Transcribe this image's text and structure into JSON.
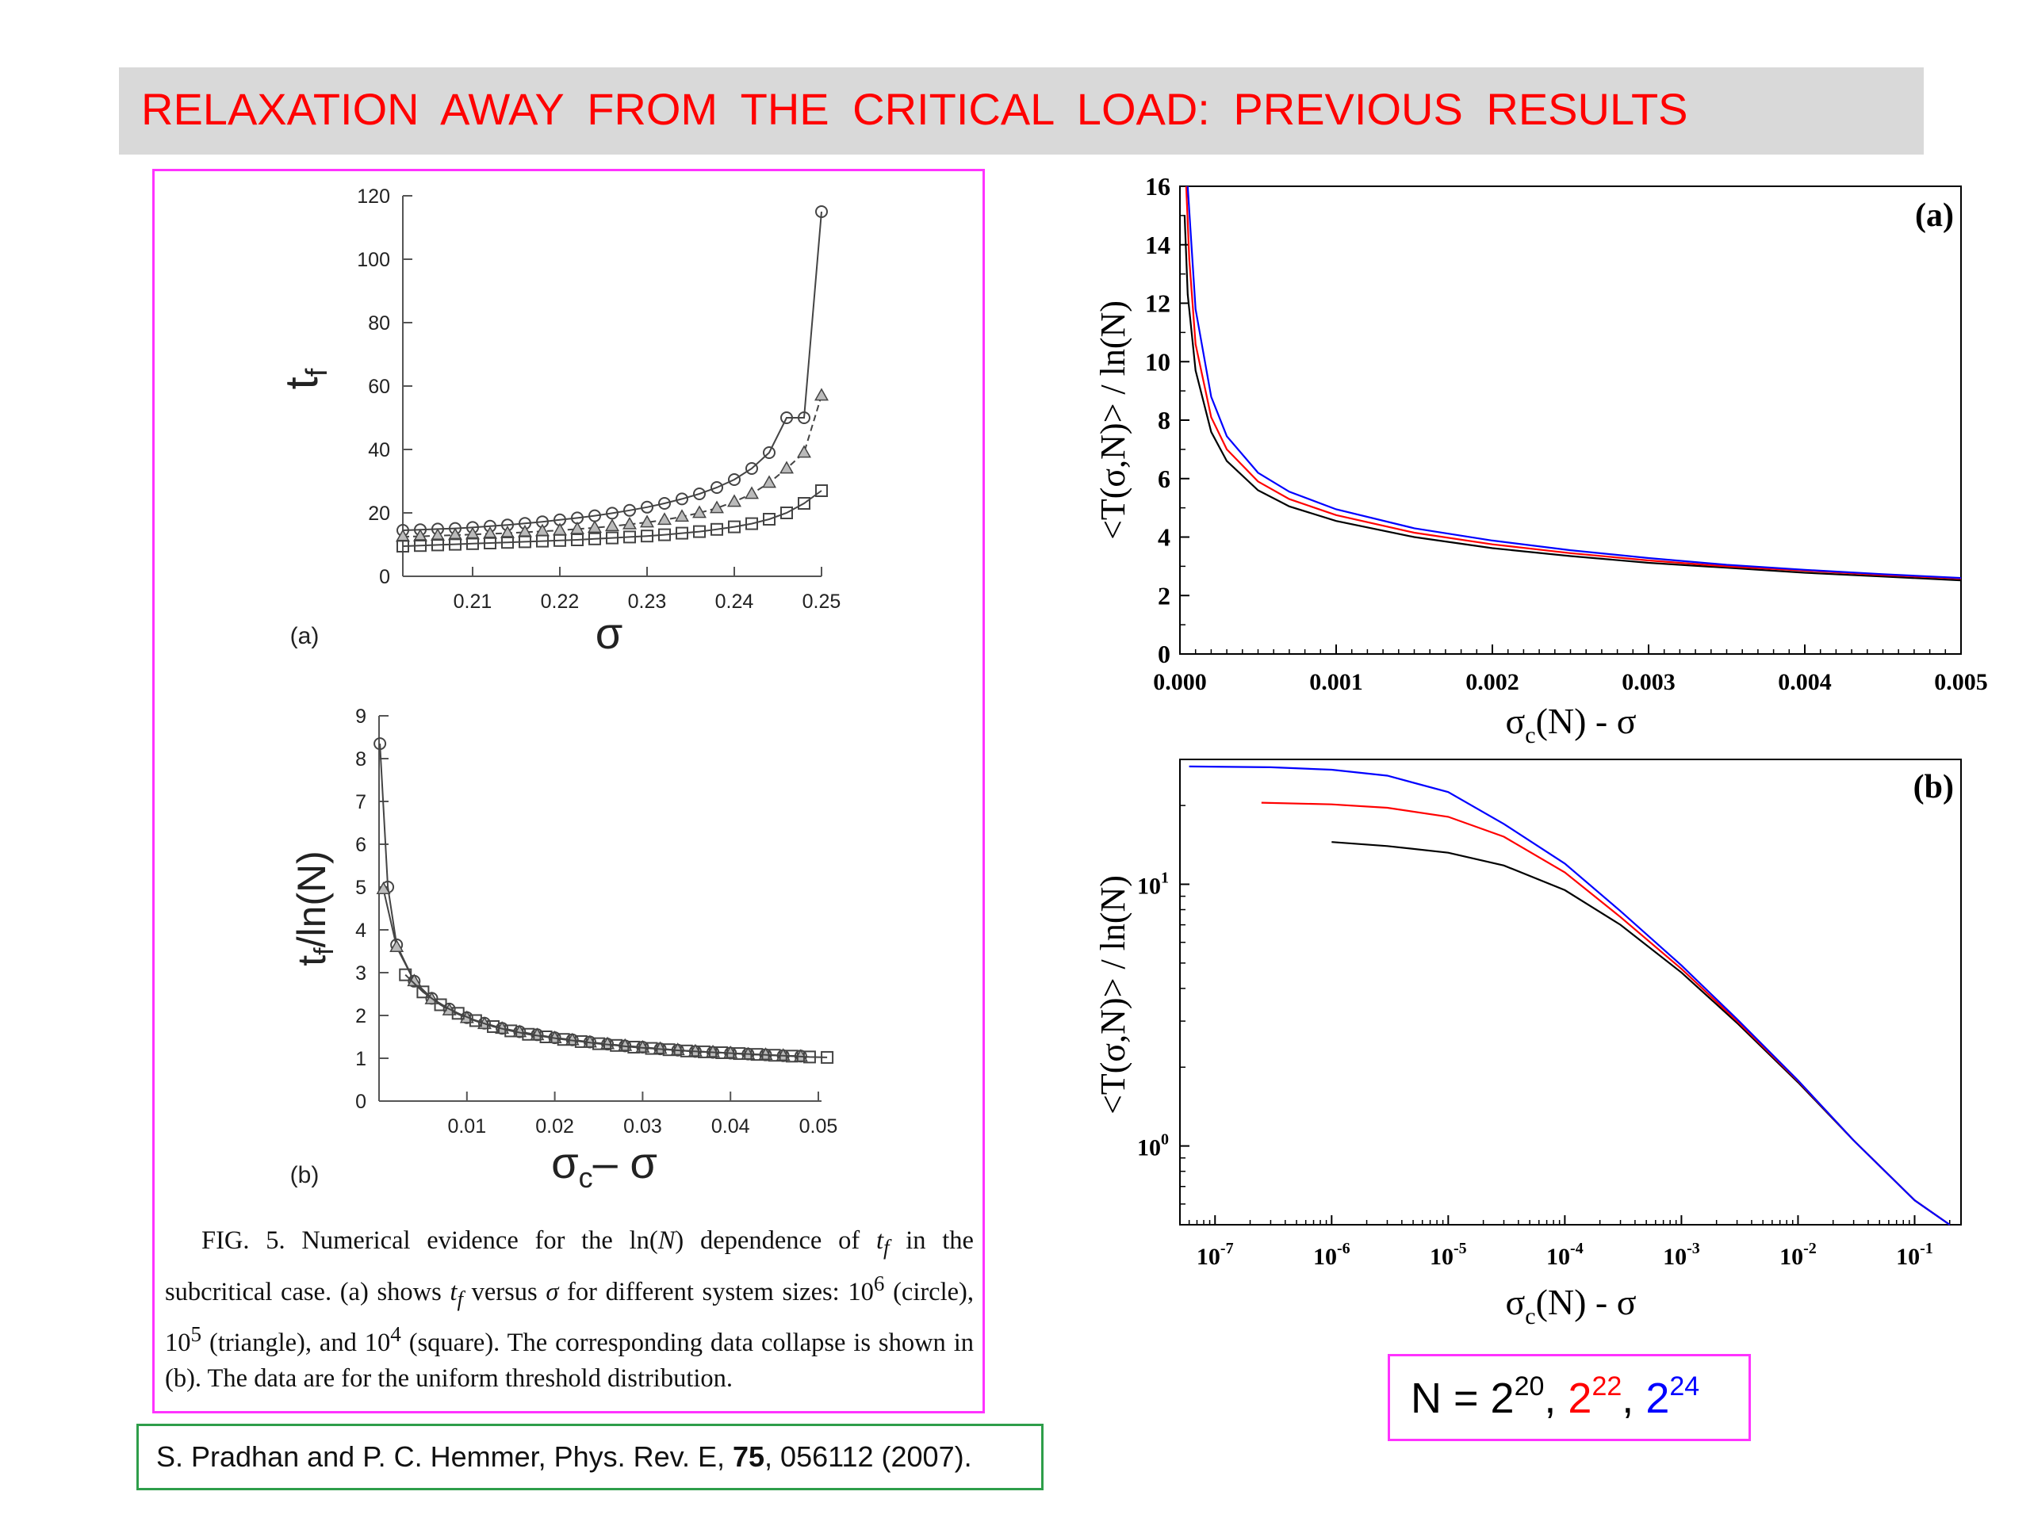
{
  "slide": {
    "title": "RELAXATION  AWAY  FROM  THE  CRITICAL  LOAD:  PREVIOUS  RESULTS",
    "caption": {
      "p1": "FIG. 5. Numerical evidence for the ln(",
      "N": "N",
      "p2": ") dependence of ",
      "t": "t",
      "f": "f",
      "p3": " in the subcritical case. (a) shows ",
      "p4": " versus ",
      "sigma": "σ",
      "p5": " for different system sizes: 10",
      "e6": "6",
      "p6": " (circle), 10",
      "e5": "5",
      "p7": " (triangle), and 10",
      "e4": "4",
      "p8": " (square). The corresponding data collapse is shown in (b). The data are for the uniform threshold distribution."
    },
    "reference": {
      "before": "S. Pradhan and P. C. Hemmer, Phys. Rev. E, ",
      "volume": "75",
      "after": ", 056112 (2007)."
    },
    "legend_box": {
      "prefix": "N = 2",
      "e1": "20",
      "sep1": ", ",
      "b2": "2",
      "e2": "22",
      "sep2": ", ",
      "b3": "2",
      "e3": "24",
      "colors": [
        "#000000",
        "#ff0000",
        "#0000ff"
      ]
    }
  },
  "chart_data": [
    {
      "panel_label": "(a)",
      "type": "line",
      "xlabel": "σ",
      "ylabel": "t",
      "ylabel_sub": "f",
      "xlim": [
        0.202,
        0.25
      ],
      "ylim": [
        0,
        120
      ],
      "xticks": [
        "0.21",
        "0.22",
        "0.23",
        "0.24",
        "0.25"
      ],
      "yticks": [
        "0",
        "20",
        "40",
        "60",
        "80",
        "100",
        "120"
      ],
      "series": [
        {
          "marker": "circle",
          "x": [
            0.202,
            0.204,
            0.206,
            0.208,
            0.21,
            0.212,
            0.214,
            0.216,
            0.218,
            0.22,
            0.222,
            0.224,
            0.226,
            0.228,
            0.23,
            0.232,
            0.234,
            0.236,
            0.238,
            0.24,
            0.242,
            0.244,
            0.246,
            0.248,
            0.25
          ],
          "y": [
            14.5,
            14.7,
            14.9,
            15.1,
            15.4,
            15.8,
            16.2,
            16.7,
            17.2,
            17.8,
            18.4,
            19.1,
            19.9,
            20.8,
            21.8,
            23,
            24.4,
            26,
            28,
            30.5,
            34,
            39,
            50,
            50,
            115
          ]
        },
        {
          "marker": "triangle",
          "x": [
            0.202,
            0.204,
            0.206,
            0.208,
            0.21,
            0.212,
            0.214,
            0.216,
            0.218,
            0.22,
            0.222,
            0.224,
            0.226,
            0.228,
            0.23,
            0.232,
            0.234,
            0.236,
            0.238,
            0.24,
            0.242,
            0.244,
            0.246,
            0.248,
            0.25
          ],
          "y": [
            12.5,
            12.6,
            12.8,
            13,
            13.2,
            13.4,
            13.6,
            13.9,
            14.2,
            14.5,
            14.9,
            15.3,
            15.8,
            16.4,
            17,
            17.8,
            18.8,
            20,
            21.5,
            23.5,
            26,
            29.5,
            34,
            39,
            57
          ]
        },
        {
          "marker": "square",
          "x": [
            0.202,
            0.204,
            0.206,
            0.208,
            0.21,
            0.212,
            0.214,
            0.216,
            0.218,
            0.22,
            0.222,
            0.224,
            0.226,
            0.228,
            0.23,
            0.232,
            0.234,
            0.236,
            0.238,
            0.24,
            0.242,
            0.244,
            0.246,
            0.248,
            0.25
          ],
          "y": [
            9.5,
            9.7,
            9.9,
            10.1,
            10.3,
            10.5,
            10.7,
            10.9,
            11.1,
            11.3,
            11.5,
            11.8,
            12.1,
            12.4,
            12.7,
            13.1,
            13.6,
            14.1,
            14.8,
            15.6,
            16.6,
            18,
            20,
            23,
            27
          ]
        }
      ]
    },
    {
      "panel_label": "(b)",
      "type": "line",
      "xlabel_sigma1": "σ",
      "xlabel_sub": "c",
      "xlabel_rest": "– σ",
      "ylabel_t": "t",
      "ylabel_sub": "f",
      "ylabel_rest": "/ln(N)",
      "xlim": [
        0,
        0.05
      ],
      "ylim": [
        0,
        9
      ],
      "xticks": [
        "0.01",
        "0.02",
        "0.03",
        "0.04",
        "0.05"
      ],
      "yticks": [
        "0",
        "1",
        "2",
        "3",
        "4",
        "5",
        "6",
        "7",
        "8",
        "9"
      ],
      "series": [
        {
          "marker": "circle",
          "x": [
            0.0001,
            0.001,
            0.002,
            0.004,
            0.006,
            0.008,
            0.01,
            0.012,
            0.014,
            0.016,
            0.018,
            0.02,
            0.022,
            0.024,
            0.026,
            0.028,
            0.03,
            0.032,
            0.034,
            0.036,
            0.038,
            0.04,
            0.042,
            0.044,
            0.046,
            0.048
          ],
          "y": [
            8.35,
            5,
            3.65,
            2.8,
            2.4,
            2.15,
            1.95,
            1.82,
            1.7,
            1.62,
            1.55,
            1.48,
            1.43,
            1.38,
            1.33,
            1.29,
            1.26,
            1.22,
            1.19,
            1.16,
            1.14,
            1.12,
            1.1,
            1.08,
            1.06,
            1.05
          ]
        },
        {
          "marker": "triangle",
          "x": [
            0.0005,
            0.002,
            0.004,
            0.006,
            0.008,
            0.01,
            0.012,
            0.014,
            0.016,
            0.018,
            0.02,
            0.022,
            0.024,
            0.026,
            0.028,
            0.03,
            0.032,
            0.034,
            0.036,
            0.038,
            0.04,
            0.042,
            0.044,
            0.046,
            0.048
          ],
          "y": [
            4.95,
            3.6,
            2.8,
            2.38,
            2.12,
            1.94,
            1.8,
            1.69,
            1.61,
            1.54,
            1.47,
            1.42,
            1.37,
            1.33,
            1.29,
            1.25,
            1.22,
            1.19,
            1.16,
            1.14,
            1.12,
            1.09,
            1.08,
            1.06,
            1.04
          ]
        },
        {
          "marker": "square",
          "x": [
            0.003,
            0.005,
            0.007,
            0.009,
            0.011,
            0.013,
            0.015,
            0.017,
            0.019,
            0.021,
            0.023,
            0.025,
            0.027,
            0.029,
            0.031,
            0.033,
            0.035,
            0.037,
            0.039,
            0.041,
            0.043,
            0.045,
            0.047,
            0.049,
            0.051
          ],
          "y": [
            2.95,
            2.55,
            2.25,
            2.05,
            1.88,
            1.74,
            1.64,
            1.56,
            1.5,
            1.44,
            1.39,
            1.34,
            1.3,
            1.26,
            1.23,
            1.2,
            1.17,
            1.15,
            1.13,
            1.11,
            1.09,
            1.07,
            1.05,
            1.03,
            1.02
          ]
        }
      ]
    },
    {
      "panel_label": "(a)",
      "type": "line",
      "xlabel_sigma": "σ",
      "xlabel_sub": "c",
      "xlabel_rest": "(N) - σ",
      "ylabel": "<T(σ,N)> / ln(N)",
      "xlim": [
        0,
        0.005
      ],
      "ylim": [
        0,
        16
      ],
      "xticks": [
        "0.000",
        "0.001",
        "0.002",
        "0.003",
        "0.004",
        "0.005"
      ],
      "yticks": [
        "0",
        "2",
        "4",
        "6",
        "8",
        "10",
        "12",
        "14",
        "16"
      ],
      "series": [
        {
          "name": "N = 2^20",
          "color": "#000000",
          "x": [
            3e-05,
            5e-05,
            0.0001,
            0.0002,
            0.0003,
            0.0005,
            0.0007,
            0.001,
            0.0015,
            0.002,
            0.0025,
            0.003,
            0.0035,
            0.004,
            0.0045,
            0.005
          ],
          "y": [
            15,
            12.3,
            9.7,
            7.6,
            6.6,
            5.6,
            5.05,
            4.55,
            4.0,
            3.62,
            3.35,
            3.12,
            2.95,
            2.78,
            2.65,
            2.52
          ]
        },
        {
          "name": "N = 2^22",
          "color": "#ff0000",
          "x": [
            4e-05,
            6e-05,
            0.0001,
            0.0002,
            0.0003,
            0.0005,
            0.0007,
            0.001,
            0.0015,
            0.002,
            0.0025,
            0.003,
            0.0035,
            0.004,
            0.0045,
            0.005
          ],
          "y": [
            16,
            13.5,
            10.6,
            8.1,
            7.0,
            5.9,
            5.3,
            4.75,
            4.15,
            3.75,
            3.45,
            3.2,
            3.0,
            2.85,
            2.7,
            2.58
          ]
        },
        {
          "name": "N = 2^24",
          "color": "#0000ff",
          "x": [
            5e-05,
            7e-05,
            0.0001,
            0.0002,
            0.0003,
            0.0005,
            0.0007,
            0.001,
            0.0015,
            0.002,
            0.0025,
            0.003,
            0.0035,
            0.004,
            0.0045,
            0.005
          ],
          "y": [
            16,
            14.3,
            11.8,
            8.8,
            7.45,
            6.2,
            5.55,
            4.95,
            4.3,
            3.88,
            3.55,
            3.28,
            3.05,
            2.88,
            2.73,
            2.6
          ]
        }
      ]
    },
    {
      "panel_label": "(b)",
      "type": "line",
      "log_x": true,
      "log_y": true,
      "xlabel_sigma": "σ",
      "xlabel_sub": "c",
      "xlabel_rest": "(N) - σ",
      "ylabel": "<T(σ,N)> / ln(N)",
      "xlim": [
        5e-08,
        0.25
      ],
      "ylim": [
        0.5,
        30
      ],
      "xticks": [
        {
          "base": "10",
          "exp": "-7"
        },
        {
          "base": "10",
          "exp": "-6"
        },
        {
          "base": "10",
          "exp": "-5"
        },
        {
          "base": "10",
          "exp": "-4"
        },
        {
          "base": "10",
          "exp": "-3"
        },
        {
          "base": "10",
          "exp": "-2"
        },
        {
          "base": "10",
          "exp": "-1"
        }
      ],
      "yticks": [
        {
          "base": "10",
          "exp": "0"
        },
        {
          "base": "10",
          "exp": "1"
        }
      ],
      "series": [
        {
          "name": "N = 2^20",
          "color": "#000000",
          "x": [
            1e-06,
            3e-06,
            1e-05,
            3e-05,
            0.0001,
            0.0003,
            0.001,
            0.003,
            0.01,
            0.03,
            0.1,
            0.2
          ],
          "y": [
            14.5,
            14.0,
            13.2,
            11.8,
            9.5,
            7.0,
            4.6,
            2.95,
            1.75,
            1.05,
            0.62,
            0.5
          ]
        },
        {
          "name": "N = 2^22",
          "color": "#ff0000",
          "x": [
            2.5e-07,
            1e-06,
            3e-06,
            1e-05,
            3e-05,
            0.0001,
            0.0003,
            0.001,
            0.003,
            0.01,
            0.03,
            0.1,
            0.2
          ],
          "y": [
            20.5,
            20.2,
            19.6,
            18.1,
            15.2,
            11.1,
            7.5,
            4.75,
            3.0,
            1.77,
            1.05,
            0.62,
            0.5
          ]
        },
        {
          "name": "N = 2^24",
          "color": "#0000ff",
          "x": [
            6e-08,
            3e-07,
            1e-06,
            3e-06,
            1e-05,
            3e-05,
            0.0001,
            0.0003,
            0.001,
            0.003,
            0.01,
            0.03,
            0.1,
            0.2
          ],
          "y": [
            28.2,
            28.0,
            27.4,
            26.0,
            22.5,
            17.0,
            12.0,
            7.9,
            4.9,
            3.05,
            1.78,
            1.05,
            0.62,
            0.5
          ]
        }
      ]
    }
  ]
}
